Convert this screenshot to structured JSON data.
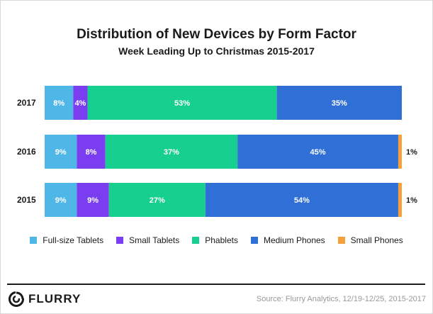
{
  "chart_data": {
    "type": "bar",
    "orientation": "horizontal",
    "stacked": true,
    "title": "Distribution of New Devices by Form Factor",
    "subtitle": "Week Leading Up to Christmas 2015-2017",
    "categories": [
      "2017",
      "2016",
      "2015"
    ],
    "series": [
      {
        "name": "Full-size Tablets",
        "color": "#4fb6e8",
        "values": [
          8,
          9,
          9
        ],
        "labels": [
          "8%",
          "9%",
          "9%"
        ]
      },
      {
        "name": "Small Tablets",
        "color": "#7a3df0",
        "values": [
          4,
          8,
          9
        ],
        "labels": [
          "4%",
          "8%",
          "9%"
        ]
      },
      {
        "name": "Phablets",
        "color": "#17d08f",
        "values": [
          53,
          37,
          27
        ],
        "labels": [
          "53%",
          "37%",
          "27%"
        ]
      },
      {
        "name": "Medium Phones",
        "color": "#2f6fd6",
        "values": [
          35,
          45,
          54
        ],
        "labels": [
          "35%",
          "45%",
          "54%"
        ]
      },
      {
        "name": "Small Phones",
        "color": "#f5a03a",
        "values": [
          0,
          1,
          1
        ],
        "labels": [
          "",
          "1%",
          "1%"
        ]
      }
    ],
    "ylim": [
      0,
      100
    ],
    "legend": "bottom",
    "grid": false
  },
  "logo": {
    "text": "FLURRY"
  },
  "source": "Source: Flurry Analytics, 12/19-12/25, 2015-2017"
}
